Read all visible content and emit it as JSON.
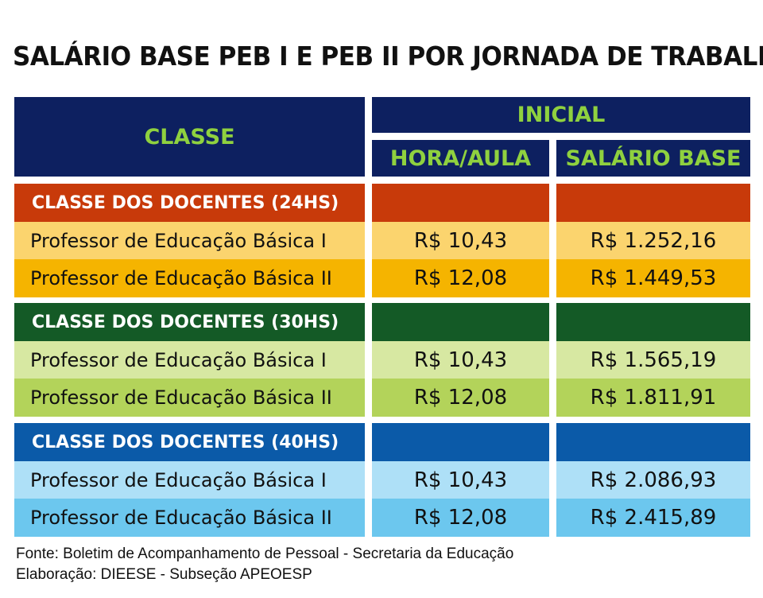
{
  "title": "SALÁRIO BASE PEB I E PEB II POR JORNADA DE TRABALHO",
  "header": {
    "classe": "CLASSE",
    "inicial": "INICIAL",
    "hora_aula": "HORA/AULA",
    "salario_base": "SALÁRIO BASE"
  },
  "groups": [
    {
      "label": "CLASSE DOS DOCENTES (24HS)",
      "colors": {
        "head": "#c83a0a",
        "row1": "#fbd46e",
        "row2": "#f5b400"
      },
      "rows": [
        {
          "label": "Professor de Educação Básica I",
          "hora_aula": "R$ 10,43",
          "salario_base": "R$ 1.252,16"
        },
        {
          "label": "Professor de Educação Básica II",
          "hora_aula": "R$ 12,08",
          "salario_base": "R$ 1.449,53"
        }
      ]
    },
    {
      "label": "CLASSE DOS DOCENTES (30HS)",
      "colors": {
        "head": "#145a26",
        "row1": "#d7e8a2",
        "row2": "#b3d35a"
      },
      "rows": [
        {
          "label": "Professor de Educação Básica I",
          "hora_aula": "R$ 10,43",
          "salario_base": "R$ 1.565,19"
        },
        {
          "label": "Professor de Educação Básica II",
          "hora_aula": "R$ 12,08",
          "salario_base": "R$ 1.811,91"
        }
      ]
    },
    {
      "label": "CLASSE DOS DOCENTES (40HS)",
      "colors": {
        "head": "#0b5aa8",
        "row1": "#aee0f7",
        "row2": "#6cc7ee"
      },
      "rows": [
        {
          "label": "Professor de Educação Básica I",
          "hora_aula": "R$ 10,43",
          "salario_base": "R$ 2.086,93"
        },
        {
          "label": "Professor de Educação Básica II",
          "hora_aula": "R$ 12,08",
          "salario_base": "R$ 2.415,89"
        }
      ]
    }
  ],
  "footer": {
    "fonte": "Fonte: Boletim de Acompanhamento de Pessoal - Secretaria da Educação",
    "elaboracao": "Elaboração: DIEESE - Subseção APEOESP"
  }
}
